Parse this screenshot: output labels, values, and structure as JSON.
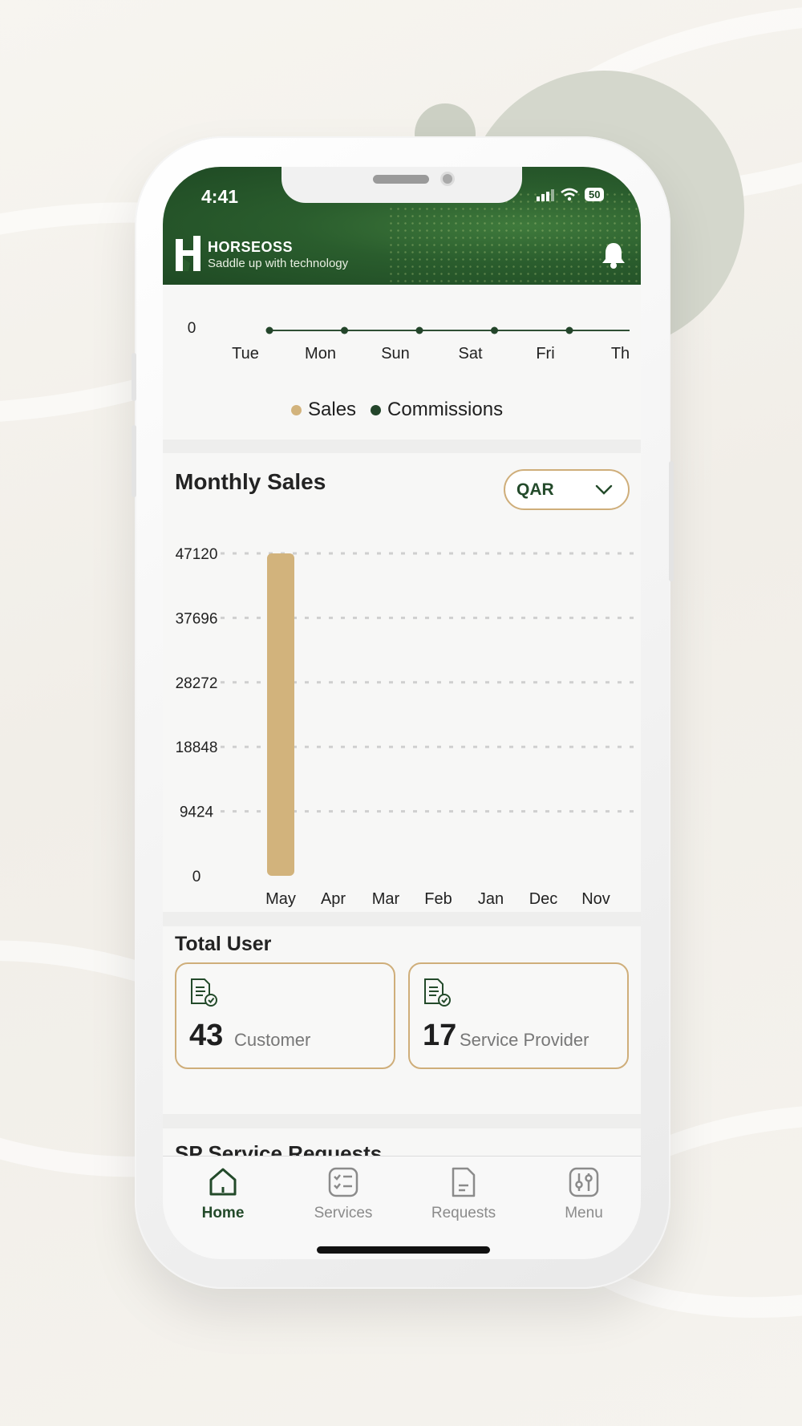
{
  "status_bar": {
    "time": "4:41",
    "battery": "50"
  },
  "header": {
    "brand_name": "HORSEOSS",
    "tagline": "Saddle up with technology"
  },
  "weekly_chart": {
    "chart_data": {
      "type": "line",
      "categories": [
        "Tue",
        "Mon",
        "Sun",
        "Sat",
        "Fri",
        "Th"
      ],
      "series": [
        {
          "name": "Sales",
          "values": [
            0,
            0,
            0,
            0,
            0,
            0
          ],
          "color": "#d2b37c"
        },
        {
          "name": "Commissions",
          "values": [
            0,
            0,
            0,
            0,
            0,
            0
          ],
          "color": "#23452a"
        }
      ],
      "y_tick_visible": "0"
    },
    "legend": {
      "sales": "Sales",
      "commissions": "Commissions"
    }
  },
  "monthly_sales": {
    "title": "Monthly Sales",
    "currency_select": {
      "value": "QAR"
    },
    "chart_data": {
      "type": "bar",
      "categories": [
        "May",
        "Apr",
        "Mar",
        "Feb",
        "Jan",
        "Dec",
        "Nov"
      ],
      "values": [
        47120,
        0,
        0,
        0,
        0,
        0,
        0
      ],
      "y_ticks": [
        0,
        9424,
        18848,
        28272,
        37696,
        47120
      ],
      "ylim": [
        0,
        47120
      ],
      "bar_color": "#d2b37c",
      "grid": true
    }
  },
  "total_user": {
    "title": "Total User",
    "customer": {
      "count": "43",
      "label": "Customer"
    },
    "service_provider": {
      "count": "17",
      "label": "Service Provider"
    }
  },
  "sp_requests": {
    "title": "SP Service Requests"
  },
  "tabbar": {
    "home": "Home",
    "services": "Services",
    "requests": "Requests",
    "menu": "Menu",
    "active": "home"
  },
  "colors": {
    "brand_green": "#234a2a",
    "accent_gold": "#cfae7a"
  }
}
